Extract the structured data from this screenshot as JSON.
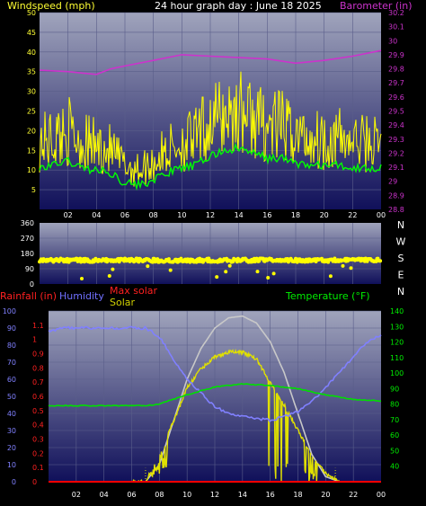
{
  "top": {
    "title_left": "Windspeed (mph)",
    "title_center": "24 hour graph day : June 18 2025",
    "title_right": "Barometer (in)",
    "left_ticks": [
      "5",
      "10",
      "15",
      "20",
      "25",
      "30",
      "35",
      "40",
      "45",
      "50"
    ],
    "right_ticks": [
      "28.8",
      "28.9",
      "29",
      "29.1",
      "29.2",
      "29.3",
      "29.4",
      "29.5",
      "29.6",
      "29.7",
      "29.8",
      "29.9",
      "30",
      "30.1",
      "30.2"
    ],
    "x_ticks": [
      "02",
      "04",
      "06",
      "08",
      "10",
      "12",
      "14",
      "16",
      "18",
      "20",
      "22",
      "00"
    ]
  },
  "mid": {
    "left_ticks": [
      "0",
      "90",
      "180",
      "270",
      "360"
    ],
    "compass": [
      "N",
      "W",
      "S",
      "E",
      "N"
    ]
  },
  "bottom": {
    "label_rain": "Rainfall (in)",
    "label_humidity": "Humidity",
    "label_maxsolar": "Max solar",
    "label_solar": "Solar",
    "label_temp": "Temperature (°F)",
    "humidity_ticks": [
      "0",
      "10",
      "20",
      "30",
      "40",
      "50",
      "60",
      "70",
      "80",
      "90",
      "100"
    ],
    "rain_ticks": [
      "0",
      "0.1",
      "0.2",
      "0.3",
      "0.4",
      "0.5",
      "0.6",
      "0.7",
      "0.8",
      "0.9",
      "1",
      "1.1"
    ],
    "temp_ticks": [
      "40",
      "50",
      "60",
      "70",
      "80",
      "90",
      "100",
      "110",
      "120",
      "130",
      "140"
    ],
    "x_ticks": [
      "02",
      "04",
      "06",
      "08",
      "10",
      "12",
      "14",
      "16",
      "18",
      "20",
      "22",
      "00"
    ]
  },
  "colors": {
    "plot_bg_top": "#a0a4bc",
    "plot_bg_bottom": "#10105a",
    "wind": "#ffff00",
    "gust_avg": "#00ff00",
    "barometer": "#cc33cc",
    "humidity": "#8080ff",
    "temperature": "#00e000",
    "rain": "#ff0000",
    "solar": "#e0e000",
    "maxsolar": "#c8c8c8"
  },
  "chart_data": [
    {
      "type": "line",
      "title": "24 hour graph day : June 18 2025",
      "ylabel": "Windspeed (mph)",
      "y2label": "Barometer (in)",
      "ylim": [
        0,
        50
      ],
      "y2lim": [
        28.8,
        30.2
      ],
      "x_range_hours": [
        0,
        24
      ],
      "series": [
        {
          "name": "Windspeed (mph)",
          "x": [
            0,
            1,
            2,
            3,
            4,
            5,
            6,
            7,
            8,
            9,
            10,
            11,
            12,
            13,
            14,
            15,
            16,
            17,
            18,
            19,
            20,
            21,
            22,
            23,
            24
          ],
          "values": [
            17,
            18,
            20,
            17,
            16,
            15,
            11,
            10,
            12,
            15,
            17,
            18,
            22,
            24,
            25,
            23,
            21,
            21,
            19,
            18,
            18,
            18,
            17,
            17,
            17
          ]
        },
        {
          "name": "Barometer (in)",
          "x": [
            0,
            2,
            3,
            4,
            5,
            6,
            8,
            10,
            12,
            14,
            16,
            18,
            20,
            22,
            24
          ],
          "values": [
            29.79,
            29.78,
            29.77,
            29.76,
            29.8,
            29.82,
            29.86,
            29.9,
            29.89,
            29.88,
            29.87,
            29.84,
            29.86,
            29.89,
            29.93
          ]
        }
      ]
    },
    {
      "type": "scatter",
      "ylabel": "Wind direction",
      "ylim": [
        0,
        360
      ],
      "x_range_hours": [
        0,
        24
      ],
      "series": [
        {
          "values": [
            140,
            140,
            140,
            140,
            140,
            140,
            140,
            140,
            140,
            140,
            140,
            140,
            140,
            140,
            140,
            140,
            140,
            140,
            140,
            140,
            140,
            140,
            140,
            140,
            140
          ]
        }
      ]
    },
    {
      "type": "line",
      "ylabel": "Humidity",
      "y2label": "Temperature (°F)",
      "ylim": [
        0,
        100
      ],
      "y2lim": [
        30,
        140
      ],
      "x_range_hours": [
        0,
        24
      ],
      "series": [
        {
          "name": "Humidity",
          "x": [
            0,
            1,
            2,
            4,
            6,
            7,
            8,
            9,
            10,
            11,
            12,
            13,
            14,
            15,
            16,
            17,
            18,
            19,
            20,
            21,
            22,
            23,
            24
          ],
          "values": [
            88,
            90,
            90,
            90,
            90,
            90,
            85,
            72,
            60,
            52,
            44,
            40,
            38,
            37,
            36,
            38,
            41,
            47,
            55,
            64,
            73,
            82,
            86
          ]
        },
        {
          "name": "Temperature (°F)",
          "x": [
            0,
            2,
            4,
            6,
            7,
            8,
            10,
            12,
            14,
            16,
            18,
            20,
            22,
            24
          ],
          "values": [
            79,
            79,
            79,
            79,
            79,
            80,
            86,
            91,
            93,
            92,
            90,
            86,
            83,
            82
          ]
        },
        {
          "name": "Solar",
          "x": [
            6,
            7,
            8,
            9,
            10,
            11,
            12,
            13,
            14,
            15,
            16,
            17,
            18,
            19,
            20,
            21
          ],
          "values": [
            0,
            0,
            15,
            35,
            55,
            66,
            73,
            76,
            76,
            72,
            58,
            45,
            30,
            15,
            5,
            0
          ]
        },
        {
          "name": "Max solar",
          "x": [
            6,
            7,
            8,
            9,
            10,
            11,
            12,
            13,
            14,
            15,
            16,
            17,
            18,
            19,
            20,
            21
          ],
          "values": [
            0,
            0,
            10,
            35,
            60,
            78,
            90,
            96,
            97,
            93,
            82,
            64,
            40,
            16,
            3,
            0
          ]
        },
        {
          "name": "Rainfall (in)",
          "x": [
            0,
            24
          ],
          "values": [
            0,
            0
          ]
        }
      ]
    }
  ]
}
